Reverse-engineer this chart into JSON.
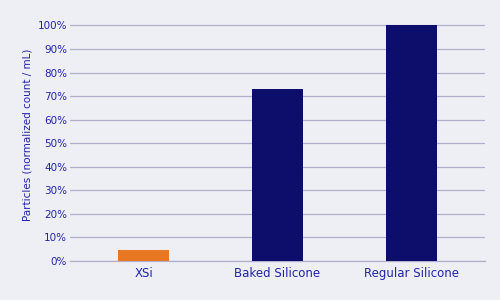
{
  "categories": [
    "XSi",
    "Baked Silicone",
    "Regular Silicone"
  ],
  "values": [
    4.5,
    73,
    100
  ],
  "bar_colors": [
    "#E87722",
    "#0D0D6B",
    "#0D0D6B"
  ],
  "ylabel": "Particles (normalized count / mL)",
  "ylim": [
    0,
    107
  ],
  "yticks": [
    0,
    10,
    20,
    30,
    40,
    50,
    60,
    70,
    80,
    90,
    100
  ],
  "ytick_labels": [
    "0%",
    "10%",
    "20%",
    "30%",
    "40%",
    "50%",
    "60%",
    "70%",
    "80%",
    "90%",
    "100%"
  ],
  "grid_color": "#B0B0CC",
  "background_color": "#EEEEF5",
  "plot_bg_color": "#EEEEF5",
  "axis_label_color": "#2222AA",
  "tick_label_color": "#2222AA",
  "xlabel_color": "#2222AA",
  "bar_width": 0.38,
  "figsize": [
    5.0,
    3.0
  ],
  "dpi": 100
}
